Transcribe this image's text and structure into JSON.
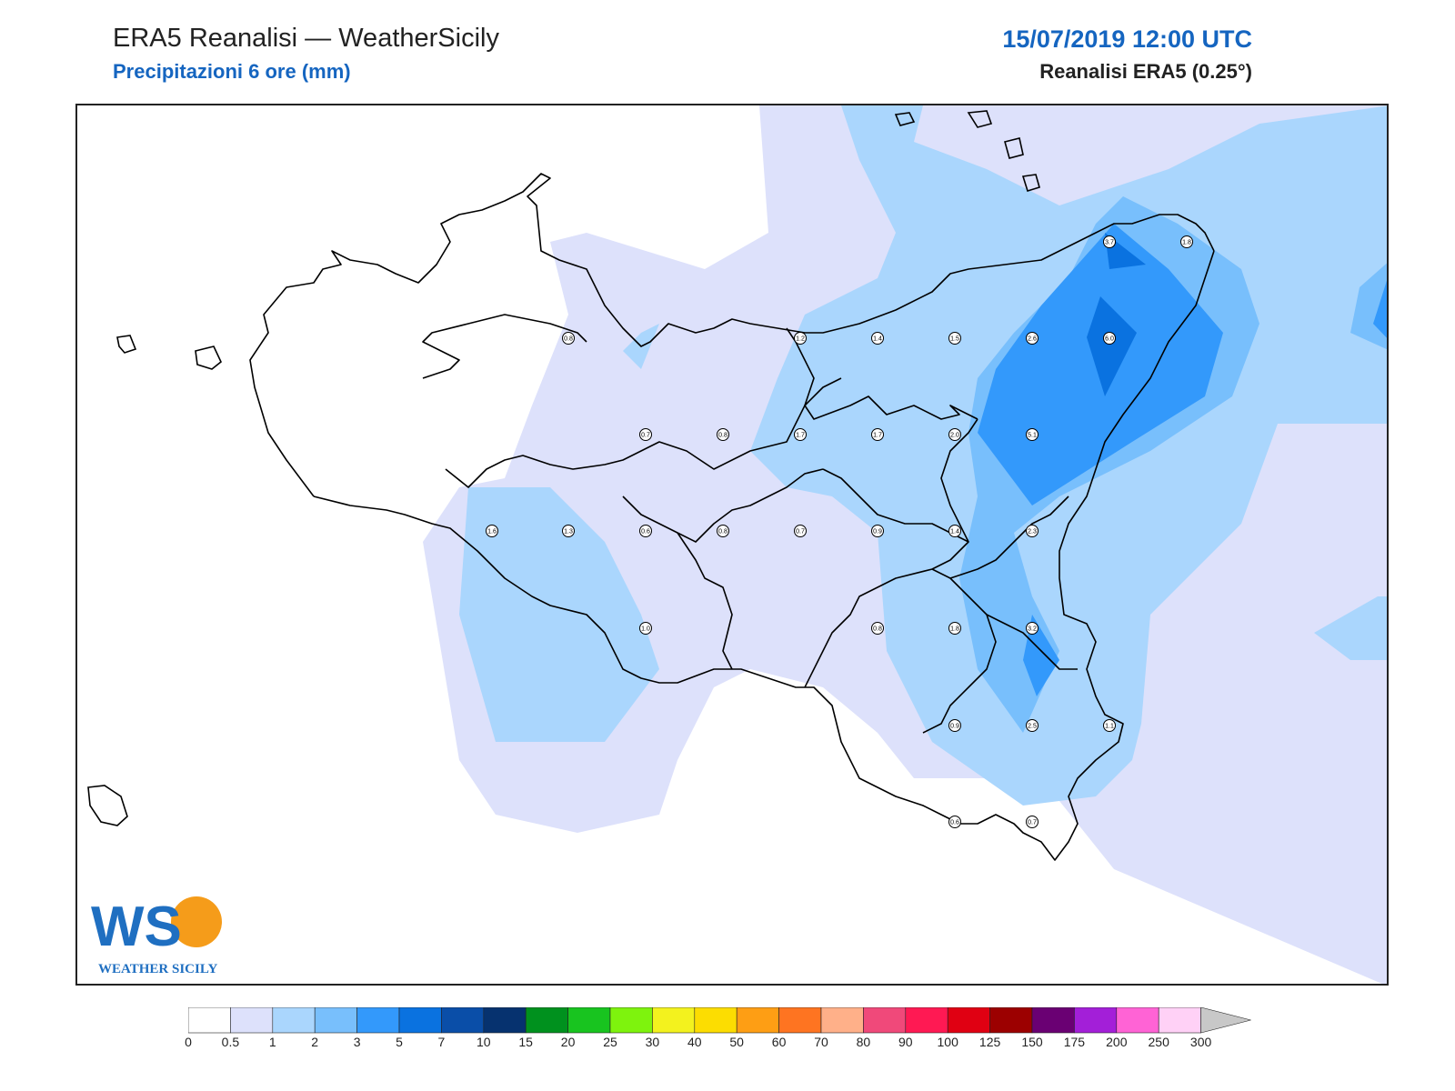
{
  "header": {
    "title": "ERA5 Reanalisi — WeatherSicily",
    "subtitle": "Precipitazioni 6 ore (mm)",
    "datetime": "15/07/2019 12:00 UTC",
    "model": "Reanalisi ERA5 (0.25°)"
  },
  "logo": {
    "letters": "WS",
    "text": "WEATHER SICILY"
  },
  "colorbar": {
    "levels": [
      "0",
      "0.5",
      "1",
      "2",
      "3",
      "5",
      "7",
      "10",
      "15",
      "20",
      "25",
      "30",
      "40",
      "50",
      "60",
      "70",
      "80",
      "90",
      "100",
      "125",
      "150",
      "175",
      "200",
      "250",
      "300"
    ],
    "colors": [
      "#ffffff",
      "#dde1fb",
      "#aad6fd",
      "#78bffc",
      "#3399fb",
      "#0a72e0",
      "#0a4ea8",
      "#06326f",
      "#00911e",
      "#18c41f",
      "#7ef30d",
      "#f3f21e",
      "#fcdd01",
      "#fe9e14",
      "#fe7421",
      "#ffb089",
      "#f0497a",
      "#ff1953",
      "#e00012",
      "#9c0000",
      "#6a0073",
      "#a31fd8",
      "#ff63d5",
      "#ffd1f6"
    ],
    "extend_color": "#c8c8c8"
  },
  "chart_data": {
    "type": "map",
    "variable": "Precipitazioni 6 ore (mm)",
    "stations": [
      {
        "value": "3.7"
      },
      {
        "value": "1.8"
      },
      {
        "value": "0.8"
      },
      {
        "value": "1.2"
      },
      {
        "value": "1.4"
      },
      {
        "value": "1.5"
      },
      {
        "value": "2.6"
      },
      {
        "value": "6.0"
      },
      {
        "value": "0.7"
      },
      {
        "value": "0.8"
      },
      {
        "value": "1.7"
      },
      {
        "value": "1.7"
      },
      {
        "value": "2.0"
      },
      {
        "value": "5.1"
      },
      {
        "value": "1.6"
      },
      {
        "value": "1.3"
      },
      {
        "value": "0.6"
      },
      {
        "value": "0.8"
      },
      {
        "value": "0.7"
      },
      {
        "value": "0.9"
      },
      {
        "value": "1.4"
      },
      {
        "value": "2.3"
      },
      {
        "value": "1.0"
      },
      {
        "value": "0.8"
      },
      {
        "value": "1.8"
      },
      {
        "value": "3.2"
      },
      {
        "value": "0.9"
      },
      {
        "value": "2.5"
      },
      {
        "value": "1.1"
      },
      {
        "value": "0.6"
      },
      {
        "value": "0.7"
      }
    ]
  }
}
